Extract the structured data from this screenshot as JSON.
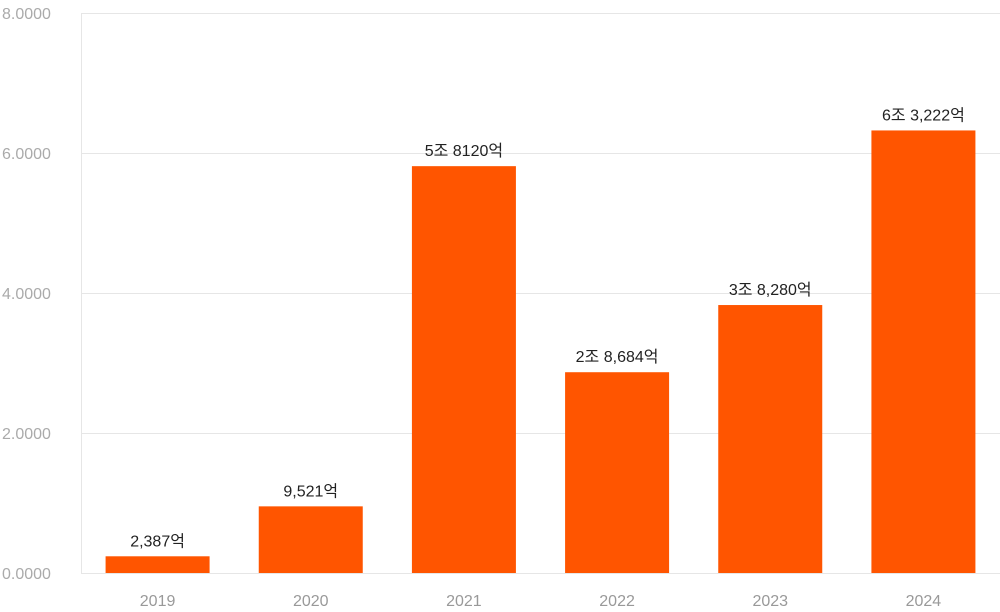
{
  "chart_data": {
    "type": "bar",
    "categories": [
      "2019",
      "2020",
      "2021",
      "2022",
      "2023",
      "2024"
    ],
    "values": [
      0.2387,
      0.9521,
      5.812,
      2.8684,
      3.828,
      6.3222
    ],
    "data_labels": [
      "2,387억",
      "9,521억",
      "5조 8120억",
      "2조 8,684억",
      "3조 8,280억",
      "6조 3,222억"
    ],
    "y_ticks": [
      "0.0000",
      "2.0000",
      "4.0000",
      "6.0000",
      "8.0000"
    ],
    "ylim": [
      0,
      8
    ],
    "grid": true,
    "bar_color": "#ff5500",
    "grid_color": "#e6e6e6"
  }
}
